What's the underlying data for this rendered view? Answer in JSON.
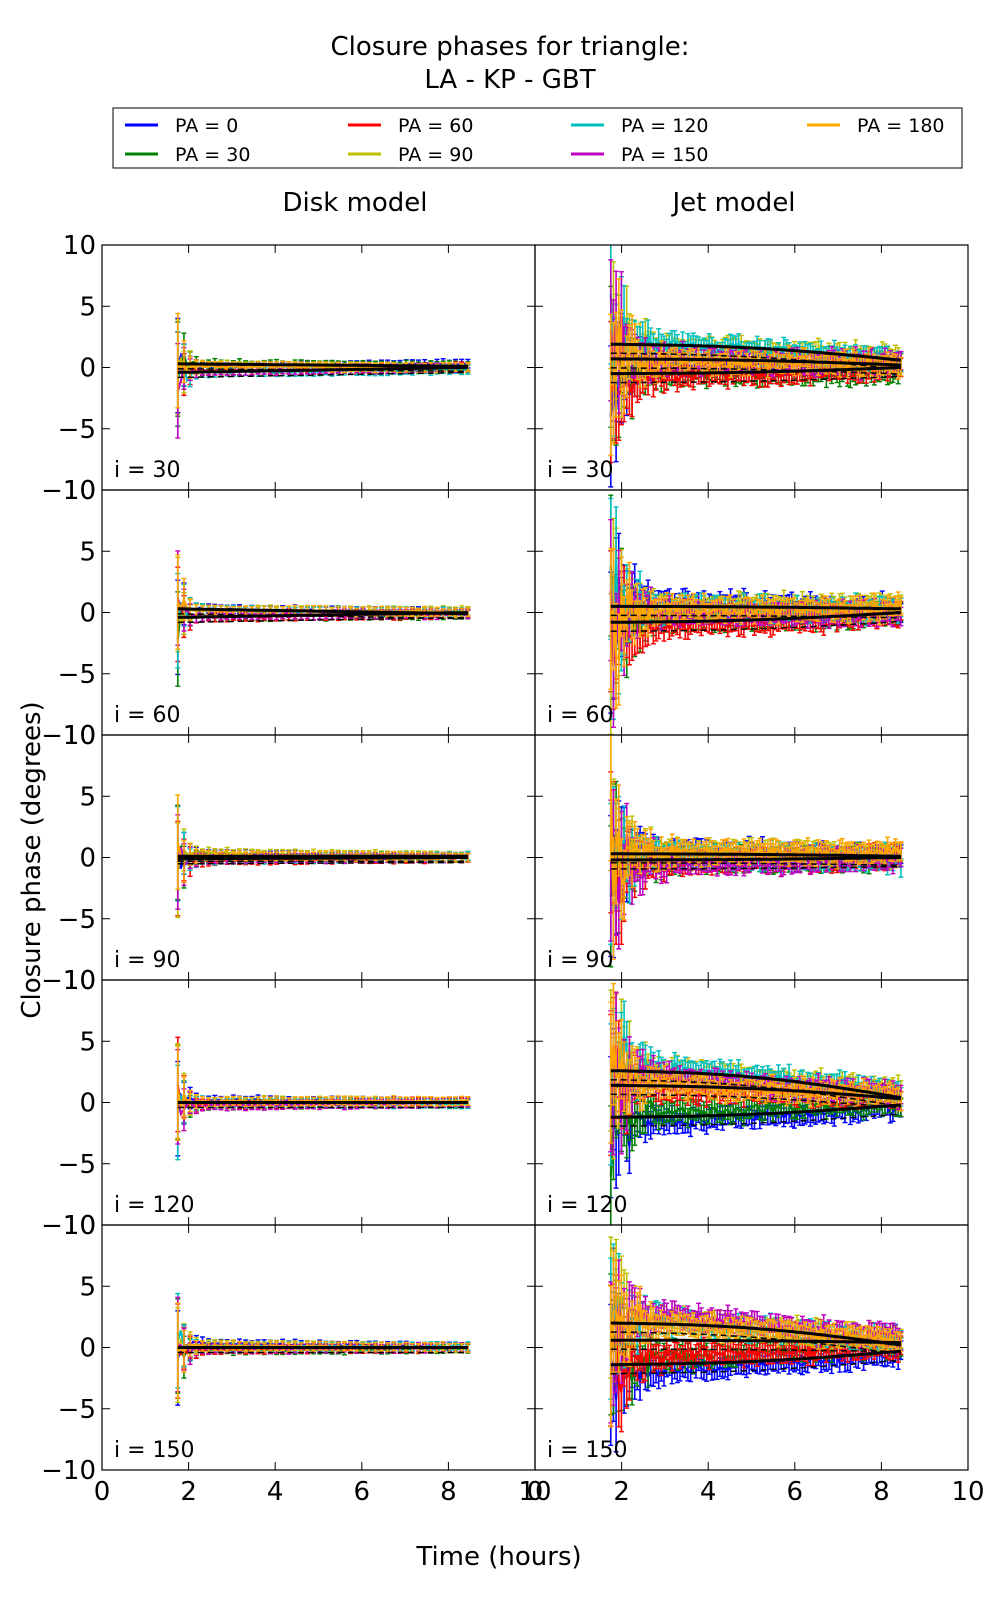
{
  "title_line1": "Closure phases for triangle:",
  "title_line2": "LA - KP - GBT",
  "col_titles": [
    "Disk model",
    "Jet model"
  ],
  "xlabel": "Time (hours)",
  "ylabel": "Closure phase (degrees)",
  "legend": [
    {
      "label": "PA = 0",
      "color": "#0000ff"
    },
    {
      "label": "PA = 30",
      "color": "#008000"
    },
    {
      "label": "PA = 60",
      "color": "#ff0000"
    },
    {
      "label": "PA = 90",
      "color": "#bfbf00"
    },
    {
      "label": "PA = 120",
      "color": "#00bfbf"
    },
    {
      "label": "PA = 150",
      "color": "#bf00bf"
    },
    {
      "label": "PA = 180",
      "color": "#ffa500"
    }
  ],
  "chart_data": {
    "type": "line",
    "title": "Closure phases for triangle: LA - KP - GBT",
    "xlabel": "Time (hours)",
    "ylabel": "Closure phase (degrees)",
    "xlim": [
      0,
      10
    ],
    "ylim": [
      -10,
      10
    ],
    "xticks": [
      "0",
      "2",
      "4",
      "6",
      "8",
      "10"
    ],
    "yticks": [
      "10",
      "5",
      "0",
      "-5",
      "-10"
    ],
    "grid": false,
    "legend_position": "top",
    "t_range": [
      1.75,
      8.45
    ],
    "columns": [
      "Disk model",
      "Jet model"
    ],
    "rows": [
      "i = 30",
      "i = 60",
      "i = 90",
      "i = 120",
      "i = 150"
    ],
    "panels": [
      {
        "row": "i = 30",
        "model": "Disk model",
        "series": [
          {
            "name": "PA = 0",
            "start": 0.0,
            "end": 0.3
          },
          {
            "name": "PA = 30",
            "start": 0.3,
            "end": 0.1
          },
          {
            "name": "PA = 60",
            "start": -0.3,
            "end": 0.0
          },
          {
            "name": "PA = 90",
            "start": 0.2,
            "end": -0.1
          },
          {
            "name": "PA = 120",
            "start": -0.4,
            "end": -0.2
          },
          {
            "name": "PA = 150",
            "start": -0.3,
            "end": 0.0
          },
          {
            "name": "PA = 180",
            "start": 0.1,
            "end": 0.0
          }
        ],
        "model_curves": [
          {
            "start": -0.4,
            "end": 0.0
          },
          {
            "start": 0.3,
            "end": 0.1
          }
        ]
      },
      {
        "row": "i = 30",
        "model": "Jet model",
        "series": [
          {
            "name": "PA = 0",
            "start": 0.3,
            "end": 0.2
          },
          {
            "name": "PA = 30",
            "start": -0.6,
            "end": -0.5
          },
          {
            "name": "PA = 60",
            "start": -1.0,
            "end": 0.0
          },
          {
            "name": "PA = 90",
            "start": 1.9,
            "end": 0.8
          },
          {
            "name": "PA = 120",
            "start": 2.1,
            "end": 0.6
          },
          {
            "name": "PA = 150",
            "start": 0.8,
            "end": 0.3
          },
          {
            "name": "PA = 180",
            "start": 0.6,
            "end": 0.3
          }
        ],
        "model_curves": [
          {
            "start": 1.9,
            "end": 0.6
          },
          {
            "start": 0.7,
            "end": 0.2
          },
          {
            "start": -0.5,
            "end": 0.0
          }
        ]
      },
      {
        "row": "i = 60",
        "model": "Disk model",
        "series": [
          {
            "name": "PA = 0",
            "start": 0.3,
            "end": 0.0
          },
          {
            "name": "PA = 30",
            "start": -0.3,
            "end": -0.2
          },
          {
            "name": "PA = 60",
            "start": -0.4,
            "end": -0.1
          },
          {
            "name": "PA = 90",
            "start": 0.2,
            "end": 0.1
          },
          {
            "name": "PA = 120",
            "start": 0.2,
            "end": 0.0
          },
          {
            "name": "PA = 150",
            "start": -0.2,
            "end": -0.1
          },
          {
            "name": "PA = 180",
            "start": 0.2,
            "end": 0.0
          }
        ],
        "model_curves": [
          {
            "start": -0.4,
            "end": 0.0
          },
          {
            "start": 0.3,
            "end": -0.1
          }
        ]
      },
      {
        "row": "i = 60",
        "model": "Jet model",
        "series": [
          {
            "name": "PA = 0",
            "start": 0.8,
            "end": 0.4
          },
          {
            "name": "PA = 30",
            "start": -0.6,
            "end": -0.2
          },
          {
            "name": "PA = 60",
            "start": -1.3,
            "end": -0.2
          },
          {
            "name": "PA = 90",
            "start": 0.4,
            "end": 0.5
          },
          {
            "name": "PA = 120",
            "start": 0.3,
            "end": 0.2
          },
          {
            "name": "PA = 150",
            "start": 0.0,
            "end": -0.2
          },
          {
            "name": "PA = 180",
            "start": 0.3,
            "end": 0.3
          }
        ],
        "model_curves": [
          {
            "start": 0.5,
            "end": 0.3
          },
          {
            "start": -0.8,
            "end": 0.0
          }
        ]
      },
      {
        "row": "i = 90",
        "model": "Disk model",
        "series": [
          {
            "name": "PA = 0",
            "start": 0.3,
            "end": 0.0
          },
          {
            "name": "PA = 30",
            "start": 0.0,
            "end": 0.0
          },
          {
            "name": "PA = 60",
            "start": -0.3,
            "end": 0.0
          },
          {
            "name": "PA = 90",
            "start": 0.4,
            "end": 0.1
          },
          {
            "name": "PA = 120",
            "start": -0.2,
            "end": 0.1
          },
          {
            "name": "PA = 150",
            "start": -0.1,
            "end": 0.0
          },
          {
            "name": "PA = 180",
            "start": 0.2,
            "end": 0.0
          }
        ],
        "model_curves": [
          {
            "start": 0.1,
            "end": 0.1
          },
          {
            "start": -0.1,
            "end": 0.0
          }
        ]
      },
      {
        "row": "i = 90",
        "model": "Jet model",
        "series": [
          {
            "name": "PA = 0",
            "start": 0.6,
            "end": 0.0
          },
          {
            "name": "PA = 30",
            "start": -0.4,
            "end": 0.0
          },
          {
            "name": "PA = 60",
            "start": -0.5,
            "end": 0.0
          },
          {
            "name": "PA = 90",
            "start": 0.6,
            "end": 0.2
          },
          {
            "name": "PA = 120",
            "start": 0.2,
            "end": -0.2
          },
          {
            "name": "PA = 150",
            "start": -0.6,
            "end": -0.1
          },
          {
            "name": "PA = 180",
            "start": 0.4,
            "end": 0.4
          }
        ],
        "model_curves": [
          {
            "start": 0.3,
            "end": 0.1
          },
          {
            "start": -0.2,
            "end": 0.0
          }
        ]
      },
      {
        "row": "i = 120",
        "model": "Disk model",
        "series": [
          {
            "name": "PA = 0",
            "start": 0.2,
            "end": 0.0
          },
          {
            "name": "PA = 30",
            "start": -0.2,
            "end": 0.0
          },
          {
            "name": "PA = 60",
            "start": -0.2,
            "end": 0.1
          },
          {
            "name": "PA = 90",
            "start": 0.1,
            "end": 0.0
          },
          {
            "name": "PA = 120",
            "start": 0.0,
            "end": -0.1
          },
          {
            "name": "PA = 150",
            "start": -0.3,
            "end": 0.0
          },
          {
            "name": "PA = 180",
            "start": 0.1,
            "end": 0.1
          }
        ],
        "model_curves": [
          {
            "start": 0.0,
            "end": 0.0
          }
        ]
      },
      {
        "row": "i = 120",
        "model": "Jet model",
        "series": [
          {
            "name": "PA = 0",
            "start": -1.8,
            "end": -0.4
          },
          {
            "name": "PA = 30",
            "start": -1.0,
            "end": 0.0
          },
          {
            "name": "PA = 60",
            "start": 1.3,
            "end": 0.5
          },
          {
            "name": "PA = 90",
            "start": 3.0,
            "end": 1.0
          },
          {
            "name": "PA = 120",
            "start": 3.3,
            "end": 0.8
          },
          {
            "name": "PA = 150",
            "start": 2.2,
            "end": 0.6
          },
          {
            "name": "PA = 180",
            "start": 1.8,
            "end": 0.5
          }
        ],
        "model_curves": [
          {
            "start": 2.6,
            "end": 0.4
          },
          {
            "start": 1.4,
            "end": 0.3
          },
          {
            "start": -1.2,
            "end": -0.2
          }
        ]
      },
      {
        "row": "i = 150",
        "model": "Disk model",
        "series": [
          {
            "name": "PA = 0",
            "start": 0.4,
            "end": 0.0
          },
          {
            "name": "PA = 30",
            "start": -0.2,
            "end": -0.1
          },
          {
            "name": "PA = 60",
            "start": -0.2,
            "end": 0.0
          },
          {
            "name": "PA = 90",
            "start": 0.2,
            "end": 0.0
          },
          {
            "name": "PA = 120",
            "start": 0.0,
            "end": 0.1
          },
          {
            "name": "PA = 150",
            "start": -0.1,
            "end": 0.0
          },
          {
            "name": "PA = 180",
            "start": 0.1,
            "end": 0.0
          }
        ],
        "model_curves": [
          {
            "start": 0.0,
            "end": 0.0
          }
        ]
      },
      {
        "row": "i = 150",
        "model": "Jet model",
        "series": [
          {
            "name": "PA = 0",
            "start": -2.2,
            "end": -0.6
          },
          {
            "name": "PA = 30",
            "start": -1.0,
            "end": 0.2
          },
          {
            "name": "PA = 60",
            "start": -0.8,
            "end": 0.0
          },
          {
            "name": "PA = 90",
            "start": 2.5,
            "end": 0.8
          },
          {
            "name": "PA = 120",
            "start": 2.6,
            "end": 0.5
          },
          {
            "name": "PA = 150",
            "start": 2.9,
            "end": 0.9
          },
          {
            "name": "PA = 180",
            "start": 2.2,
            "end": 0.6
          }
        ],
        "model_curves": [
          {
            "start": 2.0,
            "end": 0.2
          },
          {
            "start": 0.6,
            "end": 0.4
          },
          {
            "start": -1.4,
            "end": -0.3
          }
        ]
      }
    ]
  }
}
